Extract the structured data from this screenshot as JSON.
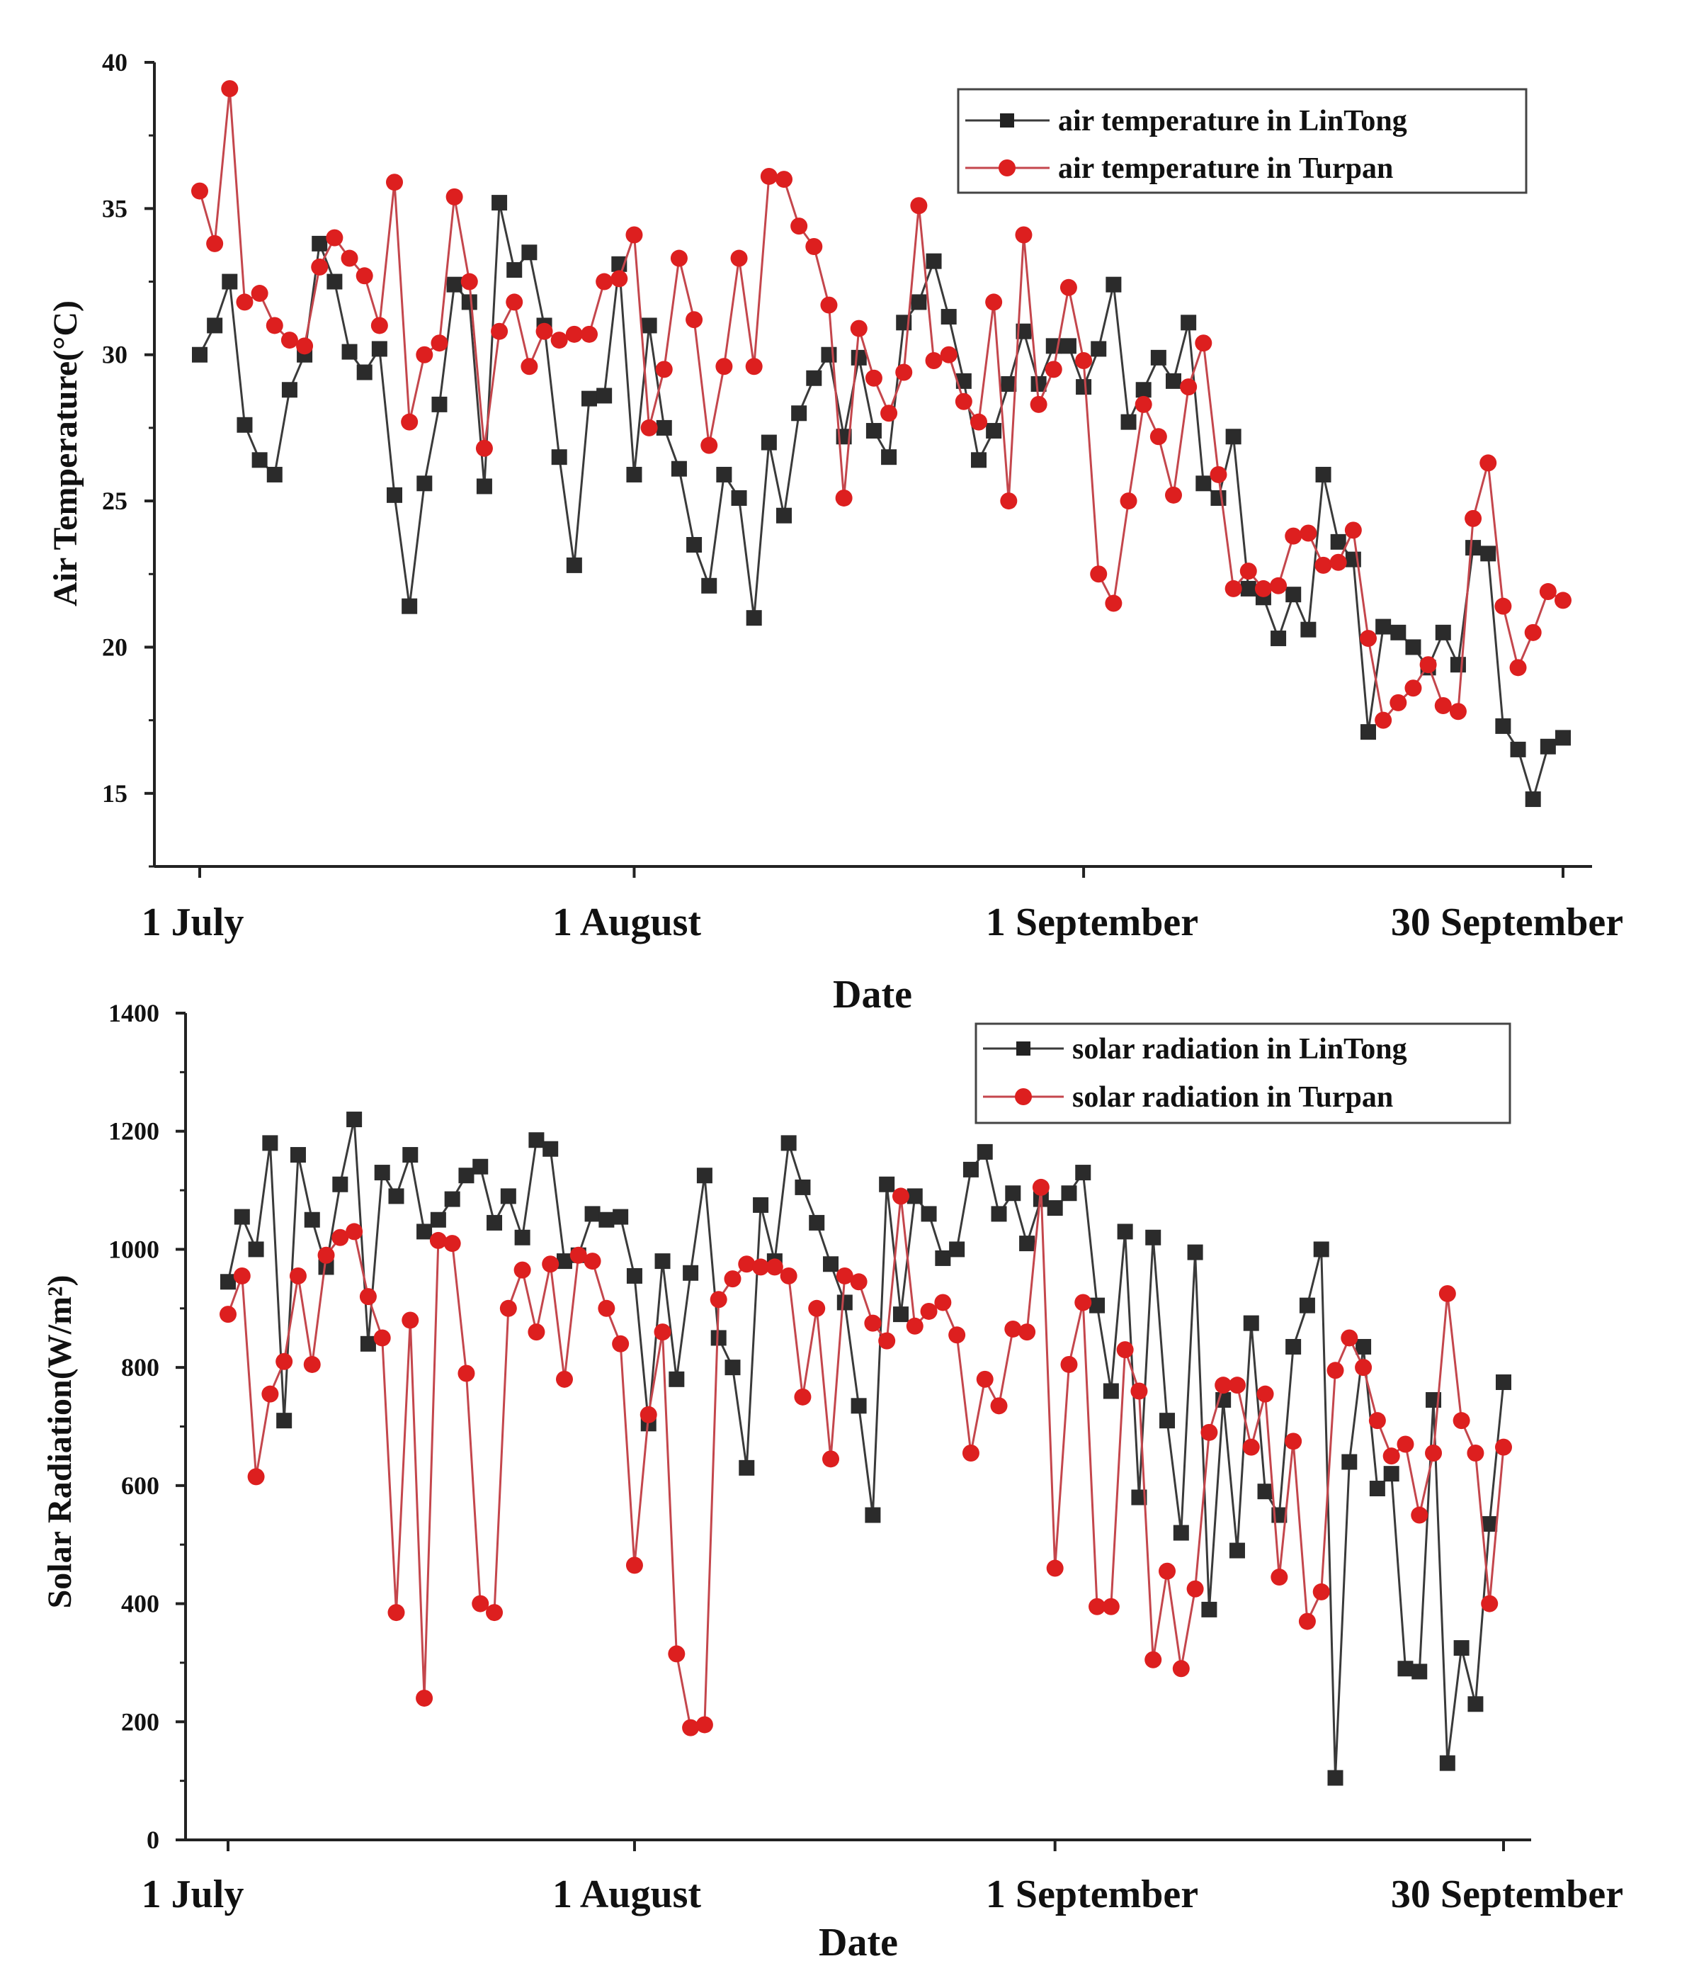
{
  "colors": {
    "lintong": "#3a3a3a",
    "turpan": "#dd1f1f",
    "turpan_line": "#c4464c",
    "axis": "#222222"
  },
  "chart_data": [
    {
      "type": "line",
      "xlabel": "Date",
      "ylabel": "Air Temperature(°C)",
      "ylim": [
        12.5,
        40
      ],
      "yticks": [
        15,
        20,
        25,
        30,
        35,
        40
      ],
      "x_range": [
        1,
        92
      ],
      "date_ticks": [
        {
          "label": "1 July",
          "day": 1
        },
        {
          "label": "1 August",
          "day": 30
        },
        {
          "label": "1 September",
          "day": 60
        },
        {
          "label": "30 September",
          "day": 92
        }
      ],
      "legend_position": "top-right",
      "series": [
        {
          "name": "air temperature in LinTong",
          "marker": "square",
          "x": [
            1,
            2,
            3,
            4,
            5,
            6,
            7,
            8,
            9,
            10,
            11,
            12,
            13,
            14,
            15,
            16,
            17,
            18,
            19,
            20,
            21,
            22,
            23,
            24,
            25,
            26,
            27,
            28,
            29,
            30,
            31,
            32,
            33,
            34,
            35,
            36,
            37,
            38,
            39,
            40,
            41,
            42,
            43,
            44,
            45,
            46,
            47,
            48,
            49,
            50,
            51,
            52,
            53,
            54,
            55,
            56,
            57,
            58,
            59,
            60,
            61,
            62,
            63,
            64,
            65,
            66,
            67,
            68,
            69,
            70,
            71,
            72,
            73,
            74,
            75,
            76,
            77,
            78,
            79,
            80,
            81,
            82,
            83,
            84,
            85,
            86,
            87,
            88,
            89,
            90,
            91,
            92
          ],
          "values": [
            30.0,
            31.0,
            32.5,
            27.6,
            26.4,
            25.9,
            28.8,
            30.0,
            33.8,
            32.5,
            30.1,
            29.4,
            30.2,
            25.2,
            21.4,
            25.6,
            28.3,
            32.4,
            31.8,
            25.5,
            35.2,
            32.9,
            33.5,
            31.0,
            26.5,
            22.8,
            28.5,
            28.6,
            33.1,
            25.9,
            31.0,
            27.5,
            26.1,
            23.5,
            22.1,
            25.9,
            25.1,
            21.0,
            27.0,
            24.5,
            28.0,
            29.2,
            30.0,
            27.2,
            29.9,
            27.4,
            26.5,
            31.1,
            31.8,
            33.2,
            31.3,
            29.1,
            26.4,
            27.4,
            29.0,
            30.8,
            29.0,
            30.3,
            30.3,
            28.9,
            30.2,
            32.4,
            27.7,
            28.8,
            29.9,
            29.1,
            31.1,
            25.6,
            25.1,
            27.2,
            22.0,
            21.7,
            20.3,
            21.8,
            20.6,
            25.9,
            23.6,
            23.0,
            17.1,
            20.7,
            20.5,
            20.0,
            19.3,
            20.5,
            19.4,
            23.4,
            23.2,
            17.3,
            16.5,
            14.8,
            16.6,
            16.9
          ]
        },
        {
          "name": "air temperature in Turpan",
          "marker": "circle",
          "x": [
            1,
            2,
            3,
            4,
            5,
            6,
            7,
            8,
            9,
            10,
            11,
            12,
            13,
            14,
            15,
            16,
            17,
            18,
            19,
            20,
            21,
            22,
            23,
            24,
            25,
            26,
            27,
            28,
            29,
            30,
            31,
            32,
            33,
            34,
            35,
            36,
            37,
            38,
            39,
            40,
            41,
            42,
            43,
            44,
            45,
            46,
            47,
            48,
            49,
            50,
            51,
            52,
            53,
            54,
            55,
            56,
            57,
            58,
            59,
            60,
            61,
            62,
            63,
            64,
            65,
            66,
            67,
            68,
            69,
            70,
            71,
            72,
            73,
            74,
            75,
            76,
            77,
            78,
            79,
            80,
            81,
            82,
            83,
            84,
            85,
            86,
            87,
            88,
            89,
            90,
            91,
            92
          ],
          "values": [
            35.6,
            33.8,
            39.1,
            31.8,
            32.1,
            31.0,
            30.5,
            30.3,
            33.0,
            34.0,
            33.3,
            32.7,
            31.0,
            35.9,
            27.7,
            30.0,
            30.4,
            35.4,
            32.5,
            26.8,
            30.8,
            31.8,
            29.6,
            30.8,
            30.5,
            30.7,
            30.7,
            32.5,
            32.6,
            34.1,
            27.5,
            29.5,
            33.3,
            31.2,
            26.9,
            29.6,
            33.3,
            29.6,
            36.1,
            36.0,
            34.4,
            33.7,
            31.7,
            25.1,
            30.9,
            29.2,
            28.0,
            29.4,
            35.1,
            29.8,
            30.0,
            28.4,
            27.7,
            31.8,
            25.0,
            34.1,
            28.3,
            29.5,
            32.3,
            29.8,
            22.5,
            21.5,
            25.0,
            28.3,
            27.2,
            25.2,
            28.9,
            30.4,
            25.9,
            22.0,
            22.6,
            22.0,
            22.1,
            23.8,
            23.9,
            22.8,
            22.9,
            24.0,
            20.3,
            17.5,
            18.1,
            18.6,
            19.4,
            18.0,
            17.8,
            24.4,
            26.3,
            21.4,
            19.3,
            20.5,
            21.9,
            21.6
          ]
        }
      ]
    },
    {
      "type": "line",
      "xlabel": "Date",
      "ylabel": "Solar Radiation(W/m²)",
      "ylim": [
        0,
        1400
      ],
      "yticks": [
        0,
        200,
        400,
        600,
        800,
        1000,
        1200,
        1400
      ],
      "x_range": [
        1,
        92
      ],
      "date_ticks": [
        {
          "label": "1 July",
          "day": 1
        },
        {
          "label": "1 August",
          "day": 30
        },
        {
          "label": "1 September",
          "day": 60
        },
        {
          "label": "30 September",
          "day": 92
        }
      ],
      "legend_position": "top-right",
      "series": [
        {
          "name": "solar radiation in LinTong",
          "marker": "square",
          "x": [
            1,
            2,
            3,
            4,
            5,
            6,
            7,
            8,
            9,
            10,
            11,
            12,
            13,
            14,
            15,
            16,
            17,
            18,
            19,
            20,
            21,
            22,
            23,
            24,
            25,
            26,
            27,
            28,
            29,
            30,
            31,
            32,
            33,
            34,
            35,
            36,
            37,
            38,
            39,
            40,
            41,
            42,
            43,
            44,
            45,
            46,
            47,
            48,
            49,
            50,
            51,
            52,
            53,
            54,
            55,
            56,
            57,
            58,
            59,
            60,
            61,
            62,
            63,
            64,
            65,
            66,
            67,
            68,
            69,
            70,
            71,
            72,
            73,
            74,
            75,
            76,
            77,
            78,
            79,
            80,
            81,
            82,
            83,
            84,
            85,
            86,
            87,
            88,
            89,
            90,
            91,
            92
          ],
          "values": [
            945,
            1055,
            1000,
            1180,
            710,
            1160,
            1050,
            970,
            1110,
            1220,
            840,
            1130,
            1090,
            1160,
            1030,
            1050,
            1085,
            1125,
            1140,
            1045,
            1090,
            1020,
            1185,
            1170,
            980,
            990,
            1060,
            1050,
            1055,
            955,
            705,
            980,
            780,
            960,
            1125,
            850,
            800,
            630,
            1075,
            980,
            1180,
            1105,
            1045,
            975,
            910,
            735,
            550,
            1110,
            890,
            1090,
            1060,
            985,
            1000,
            1135,
            1165,
            1060,
            1095,
            1010,
            1085,
            1070,
            1095,
            1130,
            905,
            760,
            1030,
            580,
            1020,
            710,
            520,
            995,
            390,
            745,
            490,
            875,
            590,
            550,
            835,
            905,
            1000,
            105,
            640,
            835,
            595,
            620,
            290,
            285,
            745,
            130,
            325,
            230,
            535,
            775
          ]
        },
        {
          "name": "solar radiation in Turpan",
          "marker": "circle",
          "x": [
            1,
            2,
            3,
            4,
            5,
            6,
            7,
            8,
            9,
            10,
            11,
            12,
            13,
            14,
            15,
            16,
            17,
            18,
            19,
            20,
            21,
            22,
            23,
            24,
            25,
            26,
            27,
            28,
            29,
            30,
            31,
            32,
            33,
            34,
            35,
            36,
            37,
            38,
            39,
            40,
            41,
            42,
            43,
            44,
            45,
            46,
            47,
            48,
            49,
            50,
            51,
            52,
            53,
            54,
            55,
            56,
            57,
            58,
            59,
            60,
            61,
            62,
            63,
            64,
            65,
            66,
            67,
            68,
            69,
            70,
            71,
            72,
            73,
            74,
            75,
            76,
            77,
            78,
            79,
            80,
            81,
            82,
            83,
            84,
            85,
            86,
            87,
            88,
            89,
            90,
            91,
            92
          ],
          "values": [
            890,
            955,
            615,
            755,
            810,
            955,
            805,
            990,
            1020,
            1030,
            920,
            850,
            385,
            880,
            240,
            1015,
            1010,
            790,
            400,
            385,
            900,
            965,
            860,
            975,
            780,
            990,
            980,
            900,
            840,
            465,
            720,
            860,
            315,
            190,
            195,
            915,
            950,
            975,
            970,
            970,
            955,
            750,
            900,
            645,
            955,
            945,
            875,
            845,
            1090,
            870,
            895,
            910,
            855,
            655,
            780,
            735,
            865,
            860,
            1105,
            460,
            805,
            910,
            395,
            395,
            830,
            760,
            305,
            455,
            290,
            425,
            690,
            770,
            770,
            665,
            755,
            445,
            675,
            370,
            420,
            795,
            850,
            800,
            710,
            650,
            670,
            550,
            655,
            925,
            710,
            655,
            400,
            665
          ]
        }
      ]
    }
  ]
}
